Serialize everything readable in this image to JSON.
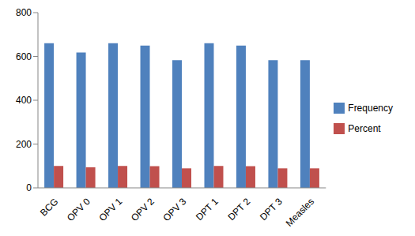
{
  "chart_data": {
    "type": "bar",
    "categories": [
      "BCG",
      "OPV 0",
      "OPV 1",
      "OPV 2",
      "OPV 3",
      "DPT 1",
      "DPT 2",
      "DPT 3",
      "Measles"
    ],
    "series": [
      {
        "name": "Frequency",
        "color": "#4f81bd",
        "values": [
          660,
          618,
          660,
          650,
          583,
          660,
          650,
          583,
          583
        ]
      },
      {
        "name": "Percent",
        "color": "#c0504d",
        "values": [
          100,
          94,
          100,
          99,
          89,
          100,
          99,
          89,
          89
        ]
      }
    ],
    "ylim": [
      0,
      800
    ],
    "yticks": [
      0,
      200,
      400,
      600,
      800
    ],
    "grid": false,
    "legend": "right"
  }
}
